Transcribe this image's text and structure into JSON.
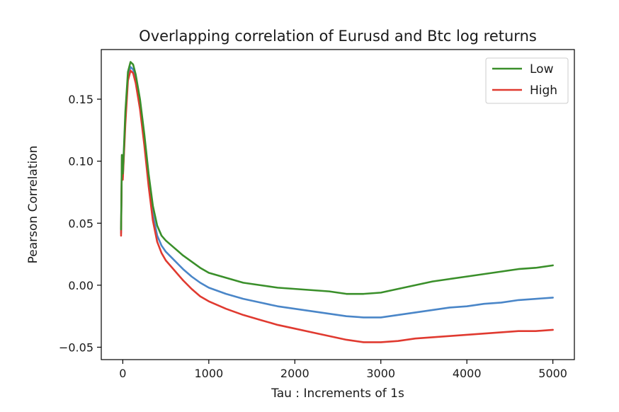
{
  "chart_data": {
    "type": "line",
    "title": "Overlapping correlation of Eurusd and Btc  log returns",
    "xlabel": "Tau : Increments of 1s",
    "ylabel": "Pearson Correlation",
    "xlim": [
      -250,
      5250
    ],
    "ylim": [
      -0.06,
      0.19
    ],
    "xticks": [
      0,
      1000,
      2000,
      3000,
      4000,
      5000
    ],
    "xtick_labels": [
      "0",
      "1000",
      "2000",
      "3000",
      "4000",
      "5000"
    ],
    "yticks": [
      -0.05,
      0.0,
      0.05,
      0.1,
      0.15
    ],
    "ytick_labels": [
      "−0.05",
      "0.00",
      "0.05",
      "0.10",
      "0.15"
    ],
    "grid": false,
    "legend_position": "top-right",
    "series": [
      {
        "name": "Low",
        "color": "#3a8f2a",
        "points": [
          [
            -20,
            0.045
          ],
          [
            -10,
            0.105
          ],
          [
            0,
            0.09
          ],
          [
            10,
            0.105
          ],
          [
            30,
            0.14
          ],
          [
            60,
            0.172
          ],
          [
            90,
            0.18
          ],
          [
            120,
            0.178
          ],
          [
            150,
            0.17
          ],
          [
            200,
            0.15
          ],
          [
            250,
            0.122
          ],
          [
            300,
            0.09
          ],
          [
            350,
            0.064
          ],
          [
            400,
            0.048
          ],
          [
            450,
            0.04
          ],
          [
            500,
            0.036
          ],
          [
            600,
            0.03
          ],
          [
            700,
            0.024
          ],
          [
            800,
            0.019
          ],
          [
            900,
            0.014
          ],
          [
            1000,
            0.01
          ],
          [
            1200,
            0.006
          ],
          [
            1400,
            0.002
          ],
          [
            1600,
            0.0
          ],
          [
            1800,
            -0.002
          ],
          [
            2000,
            -0.003
          ],
          [
            2200,
            -0.004
          ],
          [
            2400,
            -0.005
          ],
          [
            2600,
            -0.007
          ],
          [
            2800,
            -0.007
          ],
          [
            3000,
            -0.006
          ],
          [
            3200,
            -0.003
          ],
          [
            3400,
            0.0
          ],
          [
            3600,
            0.003
          ],
          [
            3800,
            0.005
          ],
          [
            4000,
            0.007
          ],
          [
            4200,
            0.009
          ],
          [
            4400,
            0.011
          ],
          [
            4600,
            0.013
          ],
          [
            4800,
            0.014
          ],
          [
            5000,
            0.016
          ]
        ]
      },
      {
        "name": "High",
        "color": "#e03a30",
        "points": [
          [
            -20,
            0.04
          ],
          [
            -10,
            0.105
          ],
          [
            0,
            0.085
          ],
          [
            10,
            0.1
          ],
          [
            30,
            0.13
          ],
          [
            60,
            0.165
          ],
          [
            90,
            0.173
          ],
          [
            120,
            0.171
          ],
          [
            150,
            0.163
          ],
          [
            200,
            0.142
          ],
          [
            250,
            0.113
          ],
          [
            300,
            0.08
          ],
          [
            350,
            0.052
          ],
          [
            400,
            0.035
          ],
          [
            450,
            0.026
          ],
          [
            500,
            0.02
          ],
          [
            600,
            0.012
          ],
          [
            700,
            0.004
          ],
          [
            800,
            -0.003
          ],
          [
            900,
            -0.009
          ],
          [
            1000,
            -0.013
          ],
          [
            1200,
            -0.019
          ],
          [
            1400,
            -0.024
          ],
          [
            1600,
            -0.028
          ],
          [
            1800,
            -0.032
          ],
          [
            2000,
            -0.035
          ],
          [
            2200,
            -0.038
          ],
          [
            2400,
            -0.041
          ],
          [
            2600,
            -0.044
          ],
          [
            2800,
            -0.046
          ],
          [
            3000,
            -0.046
          ],
          [
            3200,
            -0.045
          ],
          [
            3400,
            -0.043
          ],
          [
            3600,
            -0.042
          ],
          [
            3800,
            -0.041
          ],
          [
            4000,
            -0.04
          ],
          [
            4200,
            -0.039
          ],
          [
            4400,
            -0.038
          ],
          [
            4600,
            -0.037
          ],
          [
            4800,
            -0.037
          ],
          [
            5000,
            -0.036
          ]
        ]
      },
      {
        "color": "#4a86c8",
        "points": [
          [
            -20,
            0.042
          ],
          [
            -10,
            0.105
          ],
          [
            0,
            0.087
          ],
          [
            10,
            0.102
          ],
          [
            30,
            0.135
          ],
          [
            60,
            0.168
          ],
          [
            90,
            0.176
          ],
          [
            120,
            0.174
          ],
          [
            150,
            0.166
          ],
          [
            200,
            0.146
          ],
          [
            250,
            0.118
          ],
          [
            300,
            0.085
          ],
          [
            350,
            0.057
          ],
          [
            400,
            0.04
          ],
          [
            450,
            0.032
          ],
          [
            500,
            0.027
          ],
          [
            600,
            0.02
          ],
          [
            700,
            0.013
          ],
          [
            800,
            0.007
          ],
          [
            900,
            0.002
          ],
          [
            1000,
            -0.002
          ],
          [
            1200,
            -0.007
          ],
          [
            1400,
            -0.011
          ],
          [
            1600,
            -0.014
          ],
          [
            1800,
            -0.017
          ],
          [
            2000,
            -0.019
          ],
          [
            2200,
            -0.021
          ],
          [
            2400,
            -0.023
          ],
          [
            2600,
            -0.025
          ],
          [
            2800,
            -0.026
          ],
          [
            3000,
            -0.026
          ],
          [
            3200,
            -0.024
          ],
          [
            3400,
            -0.022
          ],
          [
            3600,
            -0.02
          ],
          [
            3800,
            -0.018
          ],
          [
            4000,
            -0.017
          ],
          [
            4200,
            -0.015
          ],
          [
            4400,
            -0.014
          ],
          [
            4600,
            -0.012
          ],
          [
            4800,
            -0.011
          ],
          [
            5000,
            -0.01
          ]
        ]
      }
    ]
  }
}
